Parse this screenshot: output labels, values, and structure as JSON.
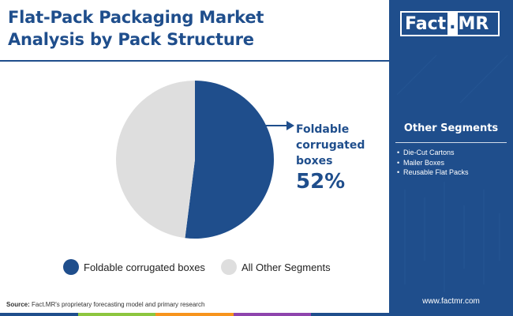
{
  "title_line1": "Flat-Pack Packaging Market",
  "title_line2": "Analysis by Pack Structure",
  "chart_data": {
    "type": "pie",
    "slices": [
      {
        "label": "Foldable corrugated boxes",
        "value": 52,
        "color": "#1f4e8c"
      },
      {
        "label": "All Other Segments",
        "value": 48,
        "color": "#dedede"
      }
    ],
    "legend_position": "bottom"
  },
  "callout": {
    "label": "Foldable corrugated boxes",
    "value": "52%"
  },
  "legend": {
    "items": [
      {
        "label": "Foldable corrugated boxes",
        "color": "#1f4e8c"
      },
      {
        "label": "All Other Segments",
        "color": "#dedede"
      }
    ]
  },
  "source": {
    "prefix": "Source:",
    "text": " Fact.MR's proprietary forecasting model and primary research"
  },
  "sidebar": {
    "logo_fact": "Fact",
    "logo_dot": ".",
    "logo_mr": "MR",
    "heading": "Other Segments",
    "items": [
      "Die-Cut Cartons",
      "Mailer Boxes",
      "Reusable Flat Packs"
    ],
    "website": "www.factmr.com"
  },
  "colors": {
    "brand": "#1f4e8c",
    "other": "#dedede",
    "bottom_bars": [
      "#1f4e8c",
      "#8dc63f",
      "#f7941d",
      "#8e44ad",
      "#1f4e8c"
    ]
  }
}
